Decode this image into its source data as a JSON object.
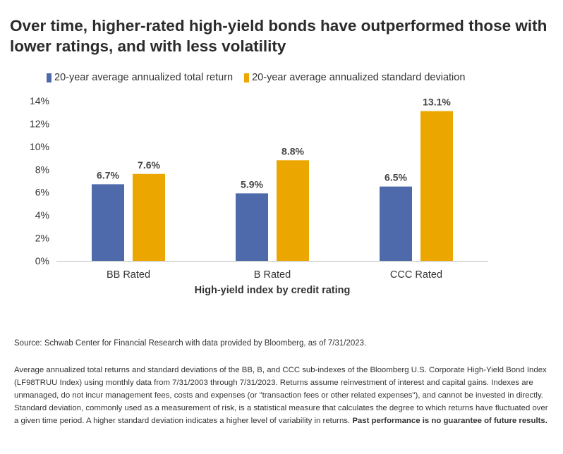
{
  "title": "Over time, higher-rated high-yield bonds have outperformed those with lower ratings, and with less volatility",
  "colors": {
    "return": "#4e6aab",
    "stdev": "#eba700"
  },
  "chart_data": {
    "type": "bar",
    "categories": [
      "BB Rated",
      "B Rated",
      "CCC Rated"
    ],
    "series": [
      {
        "name": "20-year average annualized total return",
        "values": [
          6.7,
          5.9,
          6.5
        ],
        "labels": [
          "6.7%",
          "5.9%",
          "6.5%"
        ]
      },
      {
        "name": "20-year average annualized standard deviation",
        "values": [
          7.6,
          8.8,
          13.1
        ],
        "labels": [
          "7.6%",
          "8.8%",
          "13.1%"
        ]
      }
    ],
    "xlabel": "High-yield index by credit rating",
    "ylim": [
      0,
      14
    ],
    "yticks": [
      0,
      2,
      4,
      6,
      8,
      10,
      12,
      14
    ],
    "ytick_labels": [
      "0%",
      "2%",
      "4%",
      "6%",
      "8%",
      "10%",
      "12%",
      "14%"
    ],
    "legend_position": "top-left",
    "grid": false
  },
  "source": "Source: Schwab Center for Financial Research with data provided by Bloomberg, as of 7/31/2023.",
  "notes": {
    "text": "Average annualized total returns and standard deviations of the BB, B, and CCC sub-indexes of the Bloomberg U.S. Corporate High-Yield Bond Index (LF98TRUU Index) using monthly data from 7/31/2003 through 7/31/2023. Returns assume reinvestment of interest and capital gains. Indexes  are unmanaged, do not incur management fees, costs and expenses (or \"transaction fees or other related expenses\"), and cannot be invested in directly. Standard deviation, commonly used as a measurement of risk, is a statistical measure that calculates the degree to which returns have fluctuated over a given time period. A higher standard deviation indicates a higher level of variability in returns.",
    "bold": "Past performance is no guarantee of future results."
  }
}
